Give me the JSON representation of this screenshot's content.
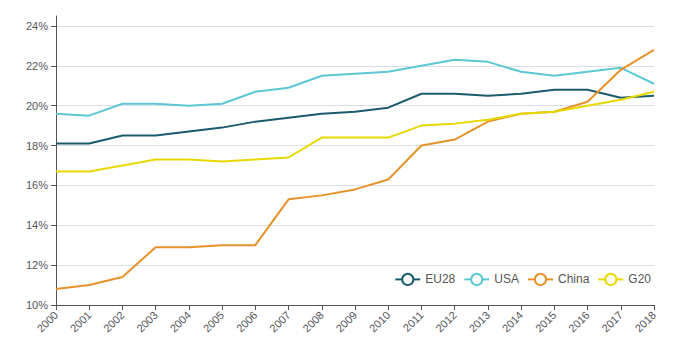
{
  "chart_data": {
    "type": "line",
    "x": [
      2000,
      2001,
      2002,
      2003,
      2004,
      2005,
      2006,
      2007,
      2008,
      2009,
      2010,
      2011,
      2012,
      2013,
      2014,
      2015,
      2016,
      2017,
      2018
    ],
    "series": [
      {
        "name": "EU28",
        "color": "#1a5c6e",
        "values": [
          0.181,
          0.181,
          0.185,
          0.185,
          0.187,
          0.189,
          0.192,
          0.194,
          0.196,
          0.197,
          0.199,
          0.206,
          0.206,
          0.205,
          0.206,
          0.208,
          0.208,
          0.204,
          0.205
        ]
      },
      {
        "name": "USA",
        "color": "#5bc8d4",
        "values": [
          0.196,
          0.195,
          0.201,
          0.201,
          0.2,
          0.201,
          0.207,
          0.209,
          0.215,
          0.216,
          0.217,
          0.22,
          0.223,
          0.222,
          0.217,
          0.215,
          0.217,
          0.219,
          0.211
        ]
      },
      {
        "name": "China",
        "color": "#e8922a",
        "values": [
          0.108,
          0.11,
          0.114,
          0.129,
          0.129,
          0.13,
          0.13,
          0.153,
          0.155,
          0.158,
          0.163,
          0.18,
          0.183,
          0.192,
          0.196,
          0.197,
          0.202,
          0.218,
          0.228
        ]
      },
      {
        "name": "G20",
        "color": "#e8d800",
        "values": [
          0.167,
          0.167,
          0.17,
          0.173,
          0.173,
          0.172,
          0.173,
          0.174,
          0.184,
          0.184,
          0.184,
          0.19,
          0.191,
          0.193,
          0.196,
          0.197,
          0.2,
          0.203,
          0.207
        ]
      }
    ],
    "xlim": [
      2000,
      2018
    ],
    "xticks": [
      2000,
      2001,
      2002,
      2003,
      2004,
      2005,
      2006,
      2007,
      2008,
      2009,
      2010,
      2011,
      2012,
      2013,
      2014,
      2015,
      2016,
      2017,
      2018
    ],
    "ylim": [
      0.1,
      0.245
    ],
    "yticks": [
      {
        "value": 0.1,
        "label": "10%"
      },
      {
        "value": 0.12,
        "label": "12%"
      },
      {
        "value": 0.14,
        "label": "14%"
      },
      {
        "value": 0.16,
        "label": "16%"
      },
      {
        "value": 0.18,
        "label": "18%"
      },
      {
        "value": 0.2,
        "label": "20%"
      },
      {
        "value": 0.22,
        "label": "22%"
      },
      {
        "value": 0.24,
        "label": "24%"
      }
    ],
    "grid": true,
    "legend": "lower right"
  }
}
